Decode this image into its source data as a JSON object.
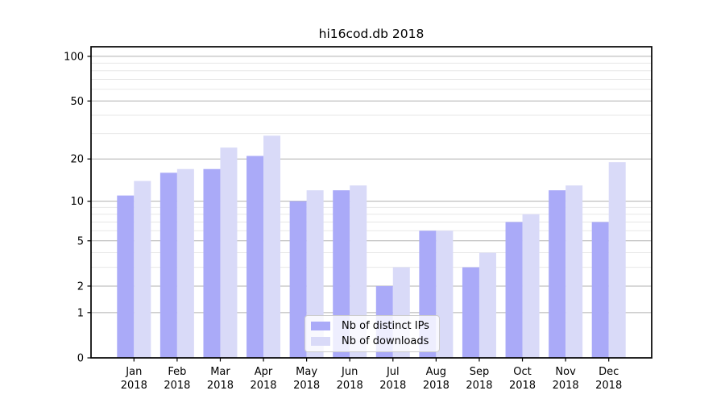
{
  "title": "hi16cod.db 2018",
  "chart_data": {
    "type": "bar",
    "title": "hi16cod.db 2018",
    "categories": [
      "Jan",
      "Feb",
      "Mar",
      "Apr",
      "May",
      "Jun",
      "Jul",
      "Aug",
      "Sep",
      "Oct",
      "Nov",
      "Dec"
    ],
    "x_year": "2018",
    "series": [
      {
        "name": "Nb of distinct IPs",
        "color": "#aaaaf8",
        "values": [
          11,
          16,
          17,
          21,
          10,
          12,
          2,
          6,
          3,
          7,
          12,
          7
        ]
      },
      {
        "name": "Nb of downloads",
        "color": "#d9daf8",
        "values": [
          14,
          17,
          24,
          29,
          12,
          13,
          3,
          6,
          4,
          8,
          13,
          19
        ]
      }
    ],
    "xlabel": "",
    "ylabel": "",
    "y_scale": "log1p",
    "y_major_ticks": [
      0,
      1,
      2,
      5,
      10,
      20,
      50,
      100
    ],
    "y_minor_gridlines": [
      3,
      4,
      6,
      7,
      8,
      9,
      30,
      40,
      60,
      70,
      80,
      90
    ],
    "ylim": [
      0,
      116
    ],
    "grid": true,
    "legend_position": "lower center",
    "style": {
      "major_grid_color": "#b0b0b0",
      "minor_grid_color": "#e7e7e7",
      "axis_color": "#000000",
      "text_color": "#000000",
      "background": "#ffffff"
    }
  }
}
